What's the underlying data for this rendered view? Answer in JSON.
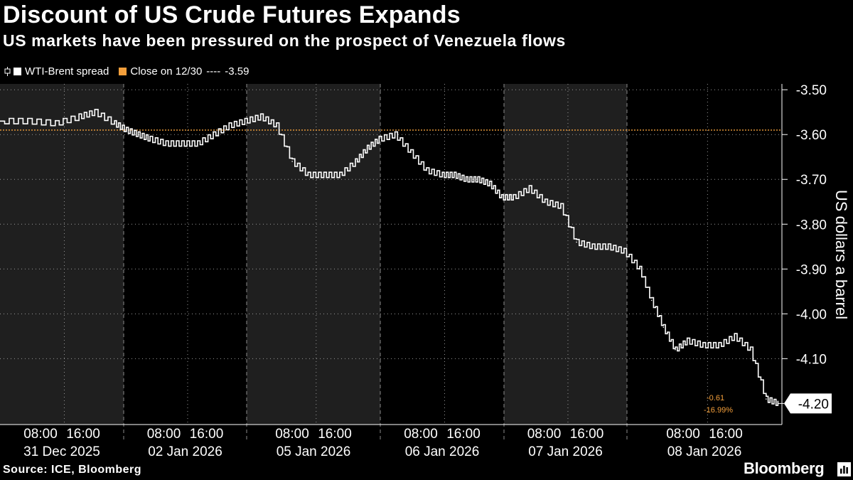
{
  "header": {
    "title": "Discount of US Crude Futures Expands",
    "subtitle": "US markets have been pressured on the prospect of Venezuela flows"
  },
  "legend": {
    "series_label": "WTI-Brent spread",
    "close_label": "Close on 12/30",
    "close_dashes": "----",
    "close_value": "-3.59",
    "series_color": "#ffffff",
    "close_color": "#f39f3b"
  },
  "footer": {
    "source": "Source: ICE, Bloomberg",
    "brand": "Bloomberg"
  },
  "chart_data": {
    "type": "line",
    "ylabel": "US dollars a barrel",
    "ylim": [
      -4.247,
      -3.487
    ],
    "y_axis_side": "right",
    "y_ticks": [
      "-3.50",
      "-3.60",
      "-3.70",
      "-3.80",
      "-3.90",
      "-4.00",
      "-4.10"
    ],
    "grid": true,
    "legend_position": "top-left",
    "reference_line": {
      "label": "Close on 12/30",
      "value": -3.59
    },
    "last_value_label": "-4.20",
    "change_labels": [
      "-0.61",
      "-16.99%"
    ],
    "days": [
      {
        "label": "31 Dec 2025",
        "ticks": [
          "08:00",
          "16:00"
        ],
        "shaded": true
      },
      {
        "label": "02 Jan 2026",
        "ticks": [
          "08:00",
          "16:00"
        ],
        "shaded": false
      },
      {
        "label": "05 Jan 2026",
        "ticks": [
          "08:00",
          "16:00"
        ],
        "shaded": true
      },
      {
        "label": "06 Jan 2026",
        "ticks": [
          "08:00",
          "16:00"
        ],
        "shaded": false
      },
      {
        "label": "07 Jan 2026",
        "ticks": [
          "08:00",
          "16:00"
        ],
        "shaded": true
      },
      {
        "label": "08 Jan 2026",
        "ticks": [
          "08:00",
          "16:00"
        ],
        "shaded": false
      }
    ],
    "series": [
      {
        "name": "WTI-Brent spread",
        "color": "#ffffff",
        "x": [
          0,
          0.35,
          0.7,
          1.0,
          1.2,
          1.45,
          1.6,
          1.75,
          1.9,
          2.1,
          2.3,
          2.5,
          2.7,
          2.9,
          3.1,
          3.3,
          3.5,
          3.7,
          3.9,
          4.1,
          4.3,
          4.5,
          4.65,
          4.8,
          5.0,
          5.2,
          5.4,
          5.6,
          5.75,
          5.9,
          6.05,
          6.2,
          6.35,
          6.5,
          6.7,
          6.9,
          7.1,
          7.3,
          7.5,
          7.7,
          7.9,
          8.1,
          8.25,
          8.4,
          8.55,
          8.7,
          8.9,
          9.1,
          9.3,
          9.5,
          9.7,
          9.85
        ],
        "y": [
          -3.57,
          -3.57,
          -3.575,
          -3.56,
          -3.55,
          -3.575,
          -3.59,
          -3.6,
          -3.61,
          -3.62,
          -3.62,
          -3.62,
          -3.6,
          -3.58,
          -3.57,
          -3.56,
          -3.58,
          -3.66,
          -3.69,
          -3.69,
          -3.69,
          -3.66,
          -3.63,
          -3.61,
          -3.6,
          -3.64,
          -3.68,
          -3.69,
          -3.69,
          -3.7,
          -3.7,
          -3.71,
          -3.74,
          -3.74,
          -3.72,
          -3.75,
          -3.76,
          -3.84,
          -3.85,
          -3.85,
          -3.86,
          -3.9,
          -3.97,
          -4.03,
          -4.08,
          -4.06,
          -4.07,
          -4.07,
          -4.05,
          -4.08,
          -4.19,
          -4.2
        ]
      }
    ]
  }
}
